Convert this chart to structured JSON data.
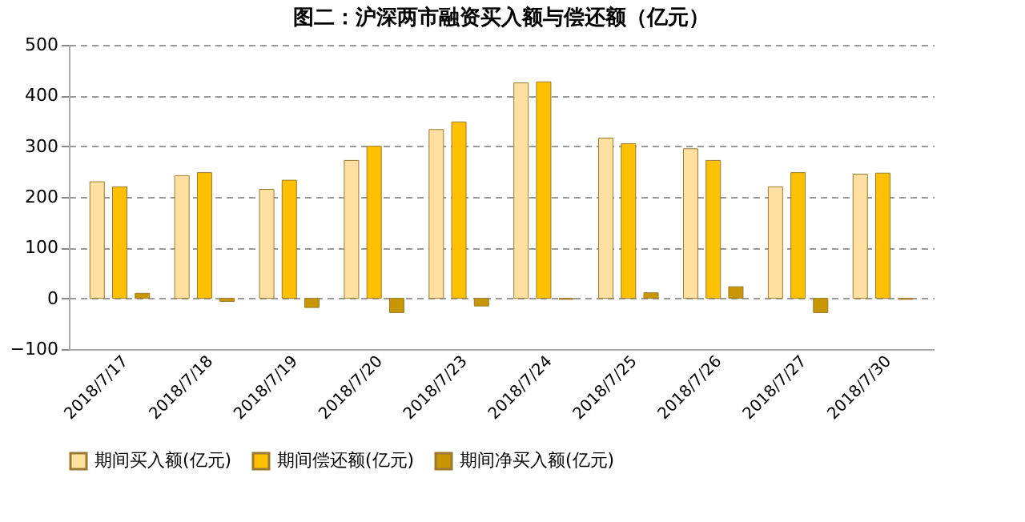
{
  "chart_data": {
    "type": "bar",
    "title": "图二：沪深两市融资买入额与偿还额（亿元）",
    "categories": [
      "2018/7/17",
      "2018/7/18",
      "2018/7/19",
      "2018/7/20",
      "2018/7/23",
      "2018/7/24",
      "2018/7/25",
      "2018/7/26",
      "2018/7/27",
      "2018/7/30"
    ],
    "series": [
      {
        "name": "期间买入额(亿元)",
        "color": "#ffe0a0",
        "values": [
          230,
          242,
          215,
          272,
          333,
          425,
          316,
          295,
          220,
          245
        ]
      },
      {
        "name": "期间偿还额(亿元)",
        "color": "#ffc000",
        "values": [
          220,
          248,
          233,
          300,
          348,
          427,
          305,
          272,
          248,
          247
        ]
      },
      {
        "name": "期间净买入额(亿元)",
        "color": "#c89600",
        "values": [
          10,
          -6,
          -18,
          -28,
          -15,
          -2,
          11,
          23,
          -28,
          -2
        ]
      }
    ],
    "ylim": [
      -100,
      500
    ],
    "yticks": [
      -100,
      0,
      100,
      200,
      300,
      400,
      500
    ],
    "grid": "y",
    "legend": "bottom"
  }
}
